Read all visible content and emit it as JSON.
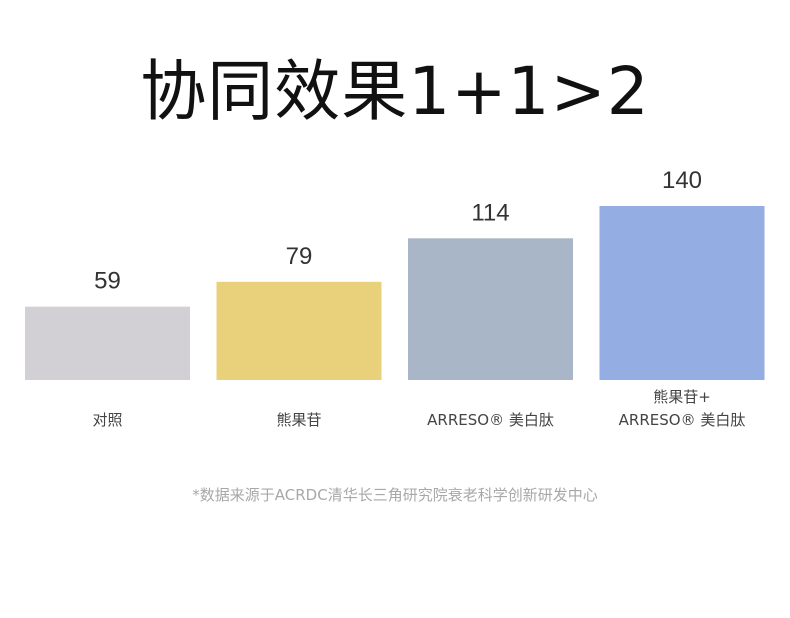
{
  "chart_data": {
    "type": "bar",
    "title": "协同效果1+1>2",
    "categories": [
      [
        "对照"
      ],
      [
        "熊果苷"
      ],
      [
        "ARRESO® 美白肽"
      ],
      [
        "熊果苷+",
        "ARRESO® 美白肽"
      ]
    ],
    "values": [
      59,
      79,
      114,
      140
    ],
    "colors": [
      "#d2d0d5",
      "#e9d07a",
      "#a8b6c7",
      "#94ade3"
    ],
    "ylim": [
      0,
      140
    ],
    "grid": false,
    "legend": "none"
  },
  "footnote": "*数据来源于ACRDC清华长三角研究院衰老科学创新研发中心"
}
